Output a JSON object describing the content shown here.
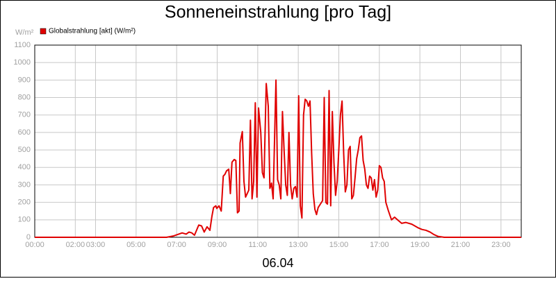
{
  "chart_data": {
    "type": "line",
    "title": "Sonneneinstrahlung [pro Tag]",
    "y_unit_label": "W/m²",
    "x_label": "06.04",
    "xlim": [
      0,
      24
    ],
    "ylim": [
      0,
      1100
    ],
    "yticks": [
      0,
      100,
      200,
      300,
      400,
      500,
      600,
      700,
      800,
      900,
      1000,
      1100
    ],
    "xticks": [
      {
        "value": 0,
        "label": "00:00"
      },
      {
        "value": 2,
        "label": "02:00"
      },
      {
        "value": 3,
        "label": "03:00"
      },
      {
        "value": 5,
        "label": "05:00"
      },
      {
        "value": 7,
        "label": "07:00"
      },
      {
        "value": 9,
        "label": "09:00"
      },
      {
        "value": 11,
        "label": "11:00"
      },
      {
        "value": 13,
        "label": "13:00"
      },
      {
        "value": 15,
        "label": "15:00"
      },
      {
        "value": 17,
        "label": "17:00"
      },
      {
        "value": 19,
        "label": "19:00"
      },
      {
        "value": 21,
        "label": "21:00"
      },
      {
        "value": 23,
        "label": "23:00"
      }
    ],
    "grid": true,
    "legend": "top-left",
    "x": [
      0,
      6.5,
      6.86,
      7.27,
      7.47,
      7.61,
      7.75,
      7.88,
      8.09,
      8.23,
      8.36,
      8.5,
      8.64,
      8.74,
      8.82,
      8.93,
      8.98,
      9.09,
      9.2,
      9.3,
      9.38,
      9.46,
      9.57,
      9.65,
      9.73,
      9.84,
      9.92,
      10.0,
      10.08,
      10.13,
      10.24,
      10.32,
      10.4,
      10.48,
      10.56,
      10.64,
      10.72,
      10.8,
      10.88,
      10.96,
      11.04,
      11.15,
      11.23,
      11.31,
      11.42,
      11.52,
      11.6,
      11.68,
      11.76,
      11.9,
      11.98,
      12.06,
      12.14,
      12.22,
      12.3,
      12.38,
      12.46,
      12.54,
      12.62,
      12.7,
      12.78,
      12.86,
      12.94,
      13.02,
      13.1,
      13.18,
      13.26,
      13.34,
      13.42,
      13.5,
      13.58,
      13.66,
      13.74,
      13.82,
      13.9,
      13.98,
      14.09,
      14.2,
      14.28,
      14.36,
      14.44,
      14.52,
      14.6,
      14.68,
      14.76,
      14.84,
      14.92,
      15.0,
      15.08,
      15.16,
      15.24,
      15.32,
      15.4,
      15.48,
      15.56,
      15.64,
      15.72,
      15.8,
      15.88,
      15.96,
      16.04,
      16.12,
      16.2,
      16.28,
      16.36,
      16.44,
      16.52,
      16.6,
      16.68,
      16.76,
      16.84,
      16.92,
      17.0,
      17.08,
      17.16,
      17.24,
      17.32,
      17.45,
      17.6,
      17.75,
      17.9,
      18.1,
      18.3,
      18.6,
      18.9,
      19.1,
      19.3,
      19.5,
      19.7,
      19.9,
      20.2,
      24
    ],
    "series": [
      {
        "name": "Globalstrahlung [akt] (W/m²)",
        "color": "#e00000",
        "values": [
          0,
          0,
          8,
          25,
          18,
          30,
          25,
          12,
          70,
          65,
          30,
          60,
          40,
          120,
          170,
          180,
          165,
          180,
          150,
          350,
          360,
          380,
          390,
          250,
          430,
          445,
          440,
          140,
          150,
          540,
          605,
          320,
          230,
          250,
          270,
          670,
          220,
          320,
          770,
          230,
          740,
          600,
          370,
          340,
          880,
          750,
          280,
          310,
          220,
          900,
          330,
          300,
          220,
          720,
          500,
          300,
          240,
          600,
          300,
          220,
          280,
          290,
          230,
          810,
          180,
          110,
          700,
          790,
          780,
          750,
          780,
          480,
          250,
          160,
          130,
          170,
          190,
          210,
          800,
          200,
          190,
          840,
          180,
          720,
          430,
          240,
          320,
          500,
          700,
          780,
          480,
          260,
          300,
          500,
          520,
          220,
          240,
          340,
          450,
          500,
          570,
          580,
          440,
          390,
          300,
          280,
          350,
          340,
          270,
          330,
          230,
          270,
          410,
          400,
          340,
          320,
          200,
          150,
          100,
          115,
          100,
          80,
          85,
          75,
          55,
          45,
          40,
          30,
          15,
          5,
          0,
          0
        ]
      }
    ]
  }
}
